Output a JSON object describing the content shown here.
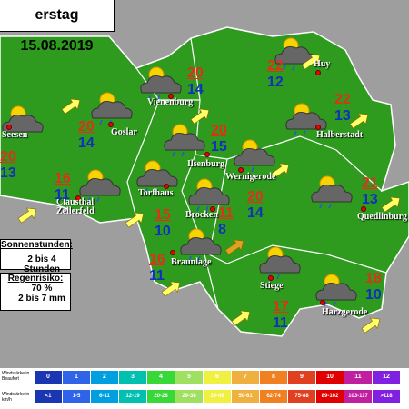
{
  "header": {
    "title": "erstag 15.08.2019"
  },
  "towns": [
    {
      "name": "Seesen",
      "high": 20,
      "low": 13
    },
    {
      "name": "Goslar",
      "high": 20,
      "low": 14
    },
    {
      "name": "Vienenburg",
      "high": 20,
      "low": 14
    },
    {
      "name": "Huy",
      "high": 22,
      "low": 12
    },
    {
      "name": "Halberstadt",
      "high": 22,
      "low": 13
    },
    {
      "name": "Ilsenburg",
      "high": 20,
      "low": 15
    },
    {
      "name": "Wernigerode",
      "high": 20,
      "low": 14
    },
    {
      "name": "Clausthal Zellerfeld",
      "high": 16,
      "low": 11
    },
    {
      "name": "Torfhaus",
      "high": 15,
      "low": 10
    },
    {
      "name": "Brocken",
      "high": 11,
      "low": 8
    },
    {
      "name": "Quedlinburg",
      "high": 21,
      "low": 13
    },
    {
      "name": "Braunlage",
      "high": 16,
      "low": 11
    },
    {
      "name": "Stiege",
      "high": 17,
      "low": 11
    },
    {
      "name": "Harzgerode",
      "high": 18,
      "low": 10
    }
  ],
  "legend": {
    "sun": {
      "label": "Sonnenstunden:",
      "value": "2 bis 4 Stunden"
    },
    "rain": {
      "label": "Regenrisiko:",
      "value": "70 %",
      "amount": "2 bis 7 mm"
    }
  },
  "wind_scale": {
    "beaufort_label": "Windstärke in Beaufort",
    "kmh_label": "Windstärke in km/h",
    "beaufort": [
      "0",
      "1",
      "2",
      "3",
      "4",
      "5",
      "6",
      "7",
      "8",
      "9",
      "10",
      "11",
      "12"
    ],
    "kmh": [
      "<1",
      "1-5",
      "6-11",
      "12-19",
      "20-28",
      "29-38",
      "39-49",
      "50-61",
      "62-74",
      "75-88",
      "89-102",
      "103-117",
      ">118"
    ]
  }
}
